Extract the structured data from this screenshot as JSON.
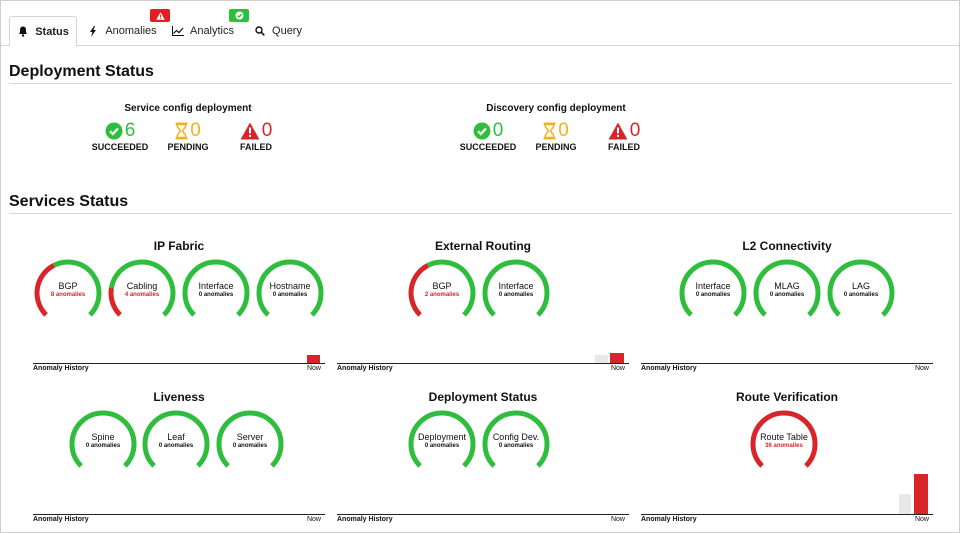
{
  "tabs": [
    {
      "label": "Status",
      "icon": "bell-icon",
      "active": true
    },
    {
      "label": "Anomalies",
      "icon": "bolt-icon",
      "badge": "alert-badge"
    },
    {
      "label": "Analytics",
      "icon": "chart-line-icon",
      "badge": "check-badge"
    },
    {
      "label": "Query",
      "icon": "search-icon"
    }
  ],
  "deployment": {
    "title": "Deployment Status",
    "blocks": [
      {
        "title": "Service config deployment",
        "succeeded": {
          "value": "6",
          "label": "SUCCEEDED"
        },
        "pending": {
          "value": "0",
          "label": "PENDING"
        },
        "failed": {
          "value": "0",
          "label": "FAILED"
        }
      },
      {
        "title": "Discovery config deployment",
        "succeeded": {
          "value": "0",
          "label": "SUCCEEDED"
        },
        "pending": {
          "value": "0",
          "label": "PENDING"
        },
        "failed": {
          "value": "0",
          "label": "FAILED"
        }
      }
    ]
  },
  "services": {
    "title": "Services Status",
    "history_label": "Anomaly History",
    "now_label": "Now",
    "panels": [
      {
        "title": "IP Fabric",
        "gauges": [
          {
            "label": "BGP",
            "anomalies": "8 anomalies",
            "error_fraction": 0.4
          },
          {
            "label": "Cabling",
            "anomalies": "4 anomalies",
            "error_fraction": 0.2
          },
          {
            "label": "Interface",
            "anomalies": "0 anomalies",
            "error_fraction": 0
          },
          {
            "label": "Hostname",
            "anomalies": "0 anomalies",
            "error_fraction": 0
          }
        ]
      },
      {
        "title": "External Routing",
        "gauges": [
          {
            "label": "BGP",
            "anomalies": "2 anomalies",
            "error_fraction": 0.4
          },
          {
            "label": "Interface",
            "anomalies": "0 anomalies",
            "error_fraction": 0
          }
        ]
      },
      {
        "title": "L2 Connectivity",
        "gauges": [
          {
            "label": "Interface",
            "anomalies": "0 anomalies",
            "error_fraction": 0
          },
          {
            "label": "MLAG",
            "anomalies": "0 anomalies",
            "error_fraction": 0
          },
          {
            "label": "LAG",
            "anomalies": "0 anomalies",
            "error_fraction": 0
          }
        ]
      },
      {
        "title": "Liveness",
        "gauges": [
          {
            "label": "Spine",
            "anomalies": "0 anomalies",
            "error_fraction": 0
          },
          {
            "label": "Leaf",
            "anomalies": "0 anomalies",
            "error_fraction": 0
          },
          {
            "label": "Server",
            "anomalies": "0 anomalies",
            "error_fraction": 0
          }
        ]
      },
      {
        "title": "Deployment Status",
        "gauges": [
          {
            "label": "Deployment",
            "anomalies": "0 anomalies",
            "error_fraction": 0
          },
          {
            "label": "Config Dev.",
            "anomalies": "0 anomalies",
            "error_fraction": 0
          }
        ]
      },
      {
        "title": "Route Verification",
        "gauges": [
          {
            "label": "Route Table",
            "anomalies": "36 anomalies",
            "error_fraction": 1
          }
        ]
      }
    ]
  },
  "colors": {
    "ok": "#2fbd3e",
    "error": "#d9252a",
    "pending": "#f0b418",
    "history_prev": "#e8e8e8"
  }
}
